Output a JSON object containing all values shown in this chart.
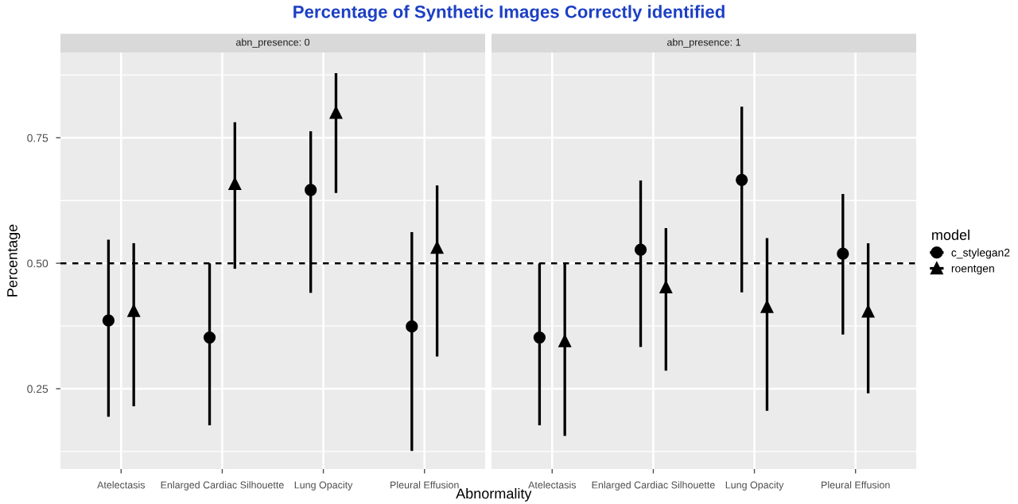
{
  "chart_data": [
    {
      "type": "scatter",
      "title": "Percentage of Synthetic Images Correctly identified",
      "subtitle": "abn_presence: 0",
      "xlabel": "Abnormality",
      "ylabel": "Percentage",
      "categories": [
        "Atelectasis",
        "Enlarged Cardiac Silhouette",
        "Lung Opacity",
        "Pleural Effusion"
      ],
      "series": [
        {
          "name": "c_stylegan2",
          "color": "#000000",
          "marker": "circle",
          "values": [
            0.386,
            0.352,
            0.646,
            0.374
          ],
          "errors": [
            [
              0.194,
              0.547
            ],
            [
              0.177,
              0.5
            ],
            [
              0.441,
              0.763
            ],
            [
              0.126,
              0.562
            ]
          ]
        },
        {
          "name": "roentgen",
          "color": "#000000",
          "marker": "triangle",
          "values": [
            0.405,
            0.658,
            0.8,
            0.531
          ],
          "errors": [
            [
              0.215,
              0.54
            ],
            [
              0.489,
              0.781
            ],
            [
              0.64,
              0.879
            ],
            [
              0.314,
              0.655
            ]
          ]
        }
      ],
      "ylim": [
        0.09,
        0.92
      ],
      "yticks": [
        {
          "value": 0.25,
          "label": "0.25"
        },
        {
          "value": 0.5,
          "label": "0.50"
        },
        {
          "value": 0.75,
          "label": "0.75"
        }
      ],
      "grid": true,
      "legend": "right",
      "legend_title": "model",
      "ref_lines": [
        {
          "axis": "y",
          "value": 0.5,
          "line_style": "dashed",
          "color": "#000000"
        }
      ]
    },
    {
      "type": "scatter",
      "subtitle": "abn_presence: 1",
      "categories": [
        "Atelectasis",
        "Enlarged Cardiac Silhouette",
        "Lung Opacity",
        "Pleural Effusion"
      ],
      "series": [
        {
          "color": "#000000",
          "marker": "circle",
          "values": [
            0.352,
            0.527,
            0.666,
            0.519
          ],
          "errors": [
            [
              0.177,
              0.5
            ],
            [
              0.333,
              0.665
            ],
            [
              0.442,
              0.812
            ],
            [
              0.358,
              0.638
            ]
          ]
        },
        {
          "color": "#000000",
          "marker": "triangle",
          "values": [
            0.345,
            0.452,
            0.413,
            0.404
          ],
          "errors": [
            [
              0.156,
              0.5
            ],
            [
              0.286,
              0.57
            ],
            [
              0.206,
              0.55
            ],
            [
              0.241,
              0.54
            ]
          ]
        }
      ],
      "ylim": [
        0.09,
        0.92
      ],
      "yticks": [
        0.25,
        0.5,
        0.75
      ],
      "grid": true,
      "tick_labels": "x",
      "ref_lines": [
        {
          "axis": "y",
          "value": 0.5,
          "line_style": "dashed",
          "color": "#000000"
        }
      ]
    }
  ]
}
